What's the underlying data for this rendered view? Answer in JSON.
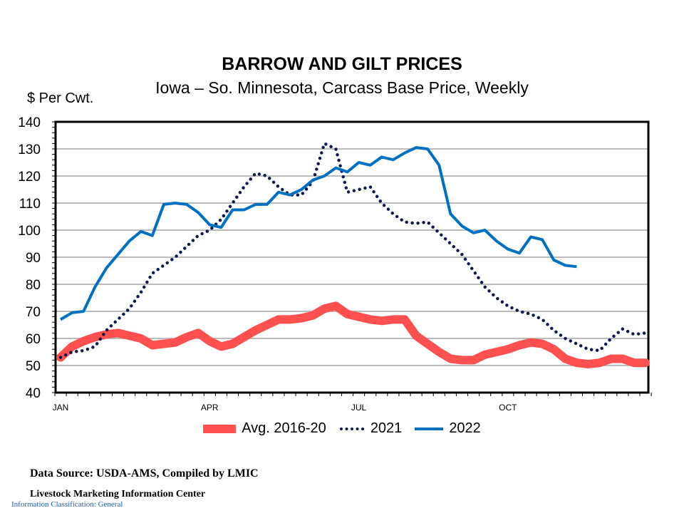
{
  "chart_data": {
    "type": "line",
    "title": "BARROW AND GILT PRICES",
    "subtitle": "Iowa – So. Minnesota, Carcass Base Price, Weekly",
    "ylabel": "$ Per Cwt.",
    "xlabel": "",
    "ylim": [
      40,
      140
    ],
    "yticks": [
      40,
      50,
      60,
      70,
      80,
      90,
      100,
      110,
      120,
      130,
      140
    ],
    "x_tick_labels": [
      {
        "label": "JAN",
        "week": 1
      },
      {
        "label": "APR",
        "week": 14
      },
      {
        "label": "JUL",
        "week": 27
      },
      {
        "label": "OCT",
        "week": 40
      }
    ],
    "x_range_weeks": [
      1,
      52
    ],
    "grid": "horizontal",
    "legend_position": "bottom",
    "series": [
      {
        "name": "Avg. 2016-20",
        "color": "#ff5050",
        "style": "thick-solid",
        "values": [
          53,
          57,
          59,
          60.5,
          61.5,
          62,
          61,
          60,
          57.5,
          58,
          58.5,
          60.5,
          62,
          59,
          57,
          58,
          60.5,
          63,
          65,
          67,
          67,
          67.5,
          68.5,
          71,
          72,
          69,
          68,
          67,
          66.5,
          67,
          67,
          61,
          58,
          55,
          52.5,
          52,
          52,
          54,
          55,
          56,
          57.5,
          58.5,
          58,
          56,
          52.5,
          51,
          50.5,
          51,
          52.5,
          52.5,
          51,
          51
        ]
      },
      {
        "name": "2021",
        "color": "#0d1a4d",
        "style": "dotted",
        "values": [
          53,
          55,
          55.5,
          57,
          63,
          67,
          71,
          77,
          84,
          87,
          90,
          94,
          98,
          100,
          104,
          110,
          116,
          121,
          120,
          116,
          113,
          113,
          118,
          132,
          130,
          114,
          115,
          116,
          110,
          106,
          103,
          102.5,
          103,
          99,
          95,
          91,
          85,
          79,
          75,
          72,
          70,
          69,
          67,
          63,
          60,
          58,
          56,
          55.5,
          60,
          63.5,
          61.5,
          62
        ]
      },
      {
        "name": "2022",
        "color": "#0070c0",
        "style": "solid",
        "values": [
          67,
          69.5,
          70,
          79,
          86,
          91,
          96,
          99.5,
          98,
          109.5,
          110,
          109.5,
          106.5,
          102,
          101,
          107.5,
          107.5,
          109.5,
          109.5,
          114,
          113,
          115,
          118.5,
          120,
          123,
          121.5,
          125,
          124,
          127,
          126,
          128.5,
          130.5,
          130,
          124,
          106,
          101.5,
          99,
          100,
          96,
          93,
          91.5,
          97.5,
          96.5,
          89,
          87,
          86.5
        ]
      }
    ]
  },
  "footer": {
    "source": "Data Source:  USDA-AMS, Compiled by LMIC",
    "organization": "Livestock Marketing Information  Center",
    "classification": "Information Classification: General"
  }
}
